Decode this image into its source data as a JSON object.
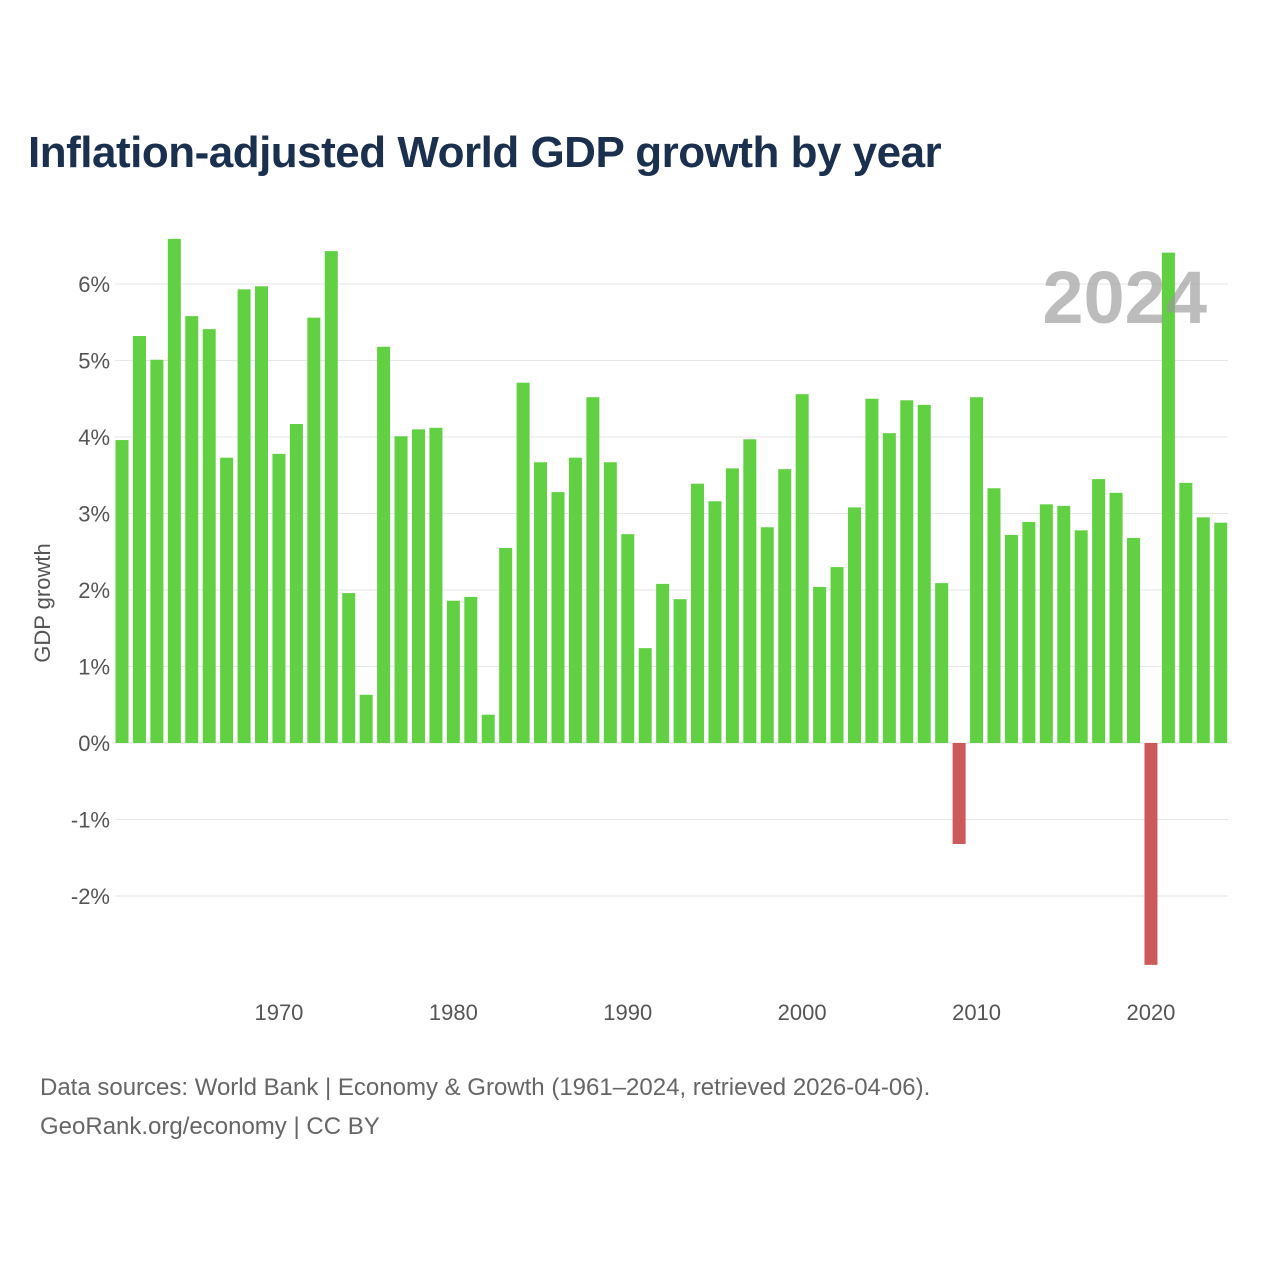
{
  "title": "Inflation-adjusted World GDP growth by year",
  "footer": {
    "line1": "Data sources: World Bank | Economy & Growth (1961–2024, retrieved 2026-04-06).",
    "line2": "GeoRank.org/economy | CC BY"
  },
  "chart_data": {
    "type": "bar",
    "title": "Inflation-adjusted World GDP growth by year",
    "xlabel": "",
    "ylabel": "GDP growth",
    "watermark": "2024",
    "ylim": [
      -3,
      6.7
    ],
    "yticks": [
      -2,
      -1,
      0,
      1,
      2,
      3,
      4,
      5,
      6
    ],
    "ytick_labels": [
      "-2%",
      "-1%",
      "0%",
      "1%",
      "2%",
      "3%",
      "4%",
      "5%",
      "6%"
    ],
    "xticks": [
      1970,
      1980,
      1990,
      2000,
      2010,
      2020
    ],
    "xtick_labels": [
      "1970",
      "1980",
      "1990",
      "2000",
      "2010",
      "2020"
    ],
    "grid": true,
    "colors": {
      "positive": "#62d043",
      "negative": "#cd5a5a"
    },
    "categories": [
      1961,
      1962,
      1963,
      1964,
      1965,
      1966,
      1967,
      1968,
      1969,
      1970,
      1971,
      1972,
      1973,
      1974,
      1975,
      1976,
      1977,
      1978,
      1979,
      1980,
      1981,
      1982,
      1983,
      1984,
      1985,
      1986,
      1987,
      1988,
      1989,
      1990,
      1991,
      1992,
      1993,
      1994,
      1995,
      1996,
      1997,
      1998,
      1999,
      2000,
      2001,
      2002,
      2003,
      2004,
      2005,
      2006,
      2007,
      2008,
      2009,
      2010,
      2011,
      2012,
      2013,
      2014,
      2015,
      2016,
      2017,
      2018,
      2019,
      2020,
      2021,
      2022,
      2023,
      2024
    ],
    "values": [
      3.96,
      5.32,
      5.01,
      6.59,
      5.58,
      5.41,
      3.73,
      5.93,
      5.97,
      3.78,
      4.17,
      5.56,
      6.43,
      1.96,
      0.63,
      5.18,
      4.01,
      4.1,
      4.12,
      1.86,
      1.91,
      0.37,
      2.55,
      4.71,
      3.67,
      3.28,
      3.73,
      4.52,
      3.67,
      2.73,
      1.24,
      2.08,
      1.88,
      3.39,
      3.16,
      3.59,
      3.97,
      2.82,
      3.58,
      4.56,
      2.04,
      2.3,
      3.08,
      4.5,
      4.05,
      4.48,
      4.42,
      2.09,
      -1.32,
      4.52,
      3.33,
      2.72,
      2.89,
      3.12,
      3.1,
      2.78,
      3.45,
      3.27,
      2.68,
      -2.9,
      6.41,
      3.4,
      2.95,
      2.88
    ]
  }
}
